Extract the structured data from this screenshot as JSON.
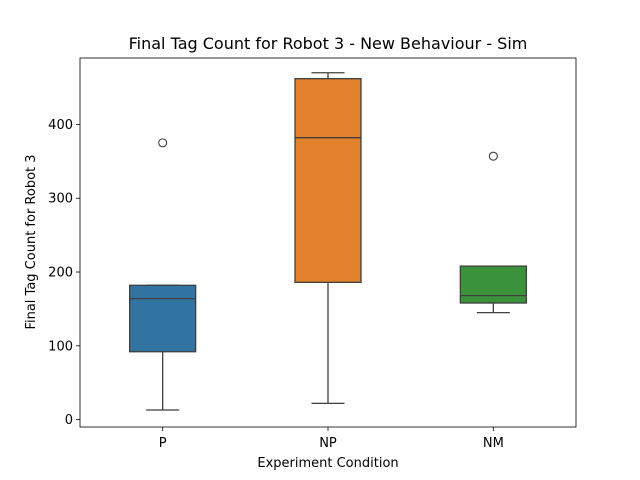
{
  "chart_data": {
    "type": "box",
    "title": "Final Tag Count for Robot 3 - New Behaviour - Sim",
    "xlabel": "Experiment Condition",
    "ylabel": "Final Tag Count for Robot 3",
    "ylim": [
      -10,
      490
    ],
    "yticks": [
      0,
      100,
      200,
      300,
      400
    ],
    "grid": false,
    "categories": [
      "P",
      "NP",
      "NM"
    ],
    "boxes": [
      {
        "category": "P",
        "color": "#3274a1",
        "whisker_low": 13,
        "q1": 92,
        "median": 164,
        "q3": 182,
        "whisker_high": 182,
        "outliers": [
          375
        ]
      },
      {
        "category": "NP",
        "color": "#e1812c",
        "whisker_low": 22,
        "q1": 186,
        "median": 382,
        "q3": 462,
        "whisker_high": 470,
        "outliers": []
      },
      {
        "category": "NM",
        "color": "#3a923a",
        "whisker_low": 145,
        "q1": 158,
        "median": 168,
        "q3": 208,
        "whisker_high": 208,
        "outliers": [
          357
        ]
      }
    ]
  }
}
